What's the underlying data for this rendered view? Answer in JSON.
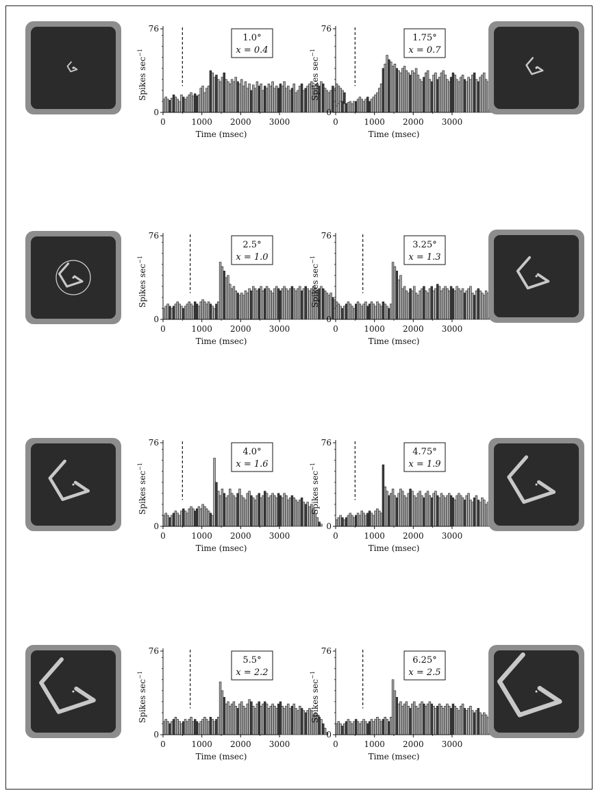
{
  "y_axis_label": "Spikes sec",
  "y_axis_label_exp": "−1",
  "x_axis_label": "Time (msec)",
  "x_ticks": [
    "0",
    "1000",
    "2000",
    "3000"
  ],
  "y_ticks": [
    "0",
    "76"
  ],
  "colors": {
    "bar_fill": "#a7a7a7",
    "bar_edge": "#1a1a1a",
    "stim_bg": "#2b2b2b",
    "stim_border": "#8d8d8d",
    "stim_shape": "#c8c8c8"
  },
  "chart_data": [
    {
      "type": "bar",
      "label_size": "1.0°",
      "label_x": "x = 0.4",
      "xlim": [
        0,
        3000
      ],
      "ylim": [
        0,
        76
      ],
      "bin_width_ms": 50,
      "onset_ms": 500,
      "values": [
        12,
        14,
        12,
        11,
        13,
        16,
        14,
        12,
        10,
        16,
        14,
        12,
        14,
        16,
        18,
        15,
        17,
        15,
        16,
        22,
        24,
        18,
        22,
        24,
        38,
        36,
        32,
        34,
        30,
        28,
        32,
        36,
        30,
        28,
        26,
        30,
        28,
        32,
        28,
        26,
        30,
        24,
        28,
        22,
        26,
        20,
        25,
        22,
        28,
        24,
        26,
        20,
        24,
        22,
        26,
        24,
        28,
        22,
        24,
        22,
        26,
        24,
        28,
        22,
        24,
        20,
        22,
        26,
        18,
        20,
        24,
        26,
        20,
        22,
        24,
        26,
        28,
        24,
        22,
        26,
        24,
        28,
        26,
        22,
        20,
        18,
        20,
        24,
        22,
        26,
        24,
        22,
        20,
        18,
        8,
        6,
        2,
        0,
        0,
        0,
        0,
        0,
        0,
        0,
        0,
        0,
        0,
        0,
        0,
        0,
        0,
        0,
        0,
        0,
        0,
        0,
        0,
        0,
        0,
        0,
        0,
        0
      ]
    },
    {
      "type": "bar",
      "label_size": "1.75°",
      "label_x": "x = 0.7",
      "xlim": [
        0,
        3000
      ],
      "ylim": [
        0,
        76
      ],
      "bin_width_ms": 50,
      "onset_ms": 500,
      "values": [
        6,
        8,
        10,
        10,
        8,
        8,
        9,
        10,
        8,
        10,
        10,
        12,
        14,
        12,
        10,
        12,
        14,
        10,
        12,
        14,
        16,
        18,
        22,
        26,
        40,
        44,
        52,
        48,
        46,
        42,
        44,
        40,
        38,
        36,
        40,
        42,
        38,
        36,
        34,
        38,
        36,
        40,
        34,
        30,
        28,
        32,
        36,
        38,
        30,
        28,
        34,
        36,
        30,
        32,
        36,
        38,
        34,
        30,
        28,
        32,
        36,
        34,
        30,
        28,
        32,
        34,
        30,
        28,
        32,
        30,
        34,
        36,
        30,
        28,
        32,
        34,
        36,
        30,
        28,
        30,
        34,
        32,
        30,
        28,
        26,
        28,
        30,
        26,
        24,
        22,
        18,
        14,
        10,
        6,
        4,
        2,
        0,
        0,
        0,
        0,
        0,
        0,
        0,
        0,
        0,
        0,
        0,
        0,
        0,
        0,
        0,
        0,
        0,
        0,
        0,
        0,
        0,
        0,
        0,
        0
      ]
    },
    {
      "type": "bar",
      "label_size": "2.5°",
      "label_x": "x = 1.0",
      "xlim": [
        0,
        3000
      ],
      "ylim": [
        0,
        76
      ],
      "bin_width_ms": 50,
      "onset_ms": 700,
      "values": [
        10,
        12,
        14,
        12,
        10,
        12,
        14,
        16,
        14,
        12,
        10,
        12,
        14,
        16,
        14,
        12,
        16,
        14,
        12,
        16,
        18,
        16,
        14,
        16,
        14,
        12,
        10,
        14,
        16,
        52,
        48,
        44,
        38,
        40,
        32,
        28,
        30,
        26,
        24,
        22,
        24,
        22,
        26,
        24,
        28,
        26,
        30,
        28,
        26,
        28,
        30,
        26,
        28,
        30,
        28,
        26,
        24,
        28,
        30,
        28,
        26,
        28,
        30,
        28,
        26,
        28,
        30,
        28,
        26,
        28,
        30,
        26,
        28,
        30,
        28,
        26,
        28,
        30,
        28,
        26,
        28,
        30,
        28,
        26,
        24,
        22,
        24,
        20,
        18,
        16,
        14,
        10,
        6,
        2,
        0,
        0,
        0,
        0,
        0,
        0,
        0,
        0,
        0,
        0,
        0,
        0,
        0,
        0,
        0,
        0,
        0,
        0,
        0,
        0,
        0,
        0,
        0,
        0,
        0,
        0
      ]
    },
    {
      "type": "bar",
      "label_size": "3.25°",
      "label_x": "x = 1.3",
      "xlim": [
        0,
        3000
      ],
      "ylim": [
        0,
        76
      ],
      "bin_width_ms": 50,
      "onset_ms": 700,
      "values": [
        12,
        14,
        12,
        10,
        12,
        14,
        16,
        14,
        12,
        10,
        14,
        16,
        14,
        12,
        14,
        16,
        12,
        14,
        16,
        14,
        12,
        16,
        14,
        12,
        16,
        14,
        12,
        10,
        14,
        52,
        48,
        44,
        36,
        40,
        28,
        30,
        26,
        24,
        28,
        26,
        30,
        24,
        22,
        26,
        28,
        30,
        26,
        24,
        28,
        30,
        26,
        28,
        32,
        30,
        26,
        28,
        30,
        28,
        26,
        30,
        28,
        26,
        30,
        28,
        26,
        28,
        24,
        26,
        28,
        30,
        24,
        22,
        26,
        28,
        26,
        24,
        22,
        26,
        24,
        20,
        22,
        24,
        22,
        20,
        18,
        20,
        18,
        16,
        14,
        12,
        8,
        4,
        2,
        0,
        0,
        0,
        0,
        0,
        0,
        0,
        0,
        0,
        0,
        0,
        0,
        0,
        0,
        0,
        0,
        0,
        0,
        0,
        0,
        0,
        0,
        0,
        0,
        0,
        0,
        0
      ]
    },
    {
      "type": "bar",
      "label_size": "4.0°",
      "label_x": "x = 1.6",
      "xlim": [
        0,
        3000
      ],
      "ylim": [
        0,
        76
      ],
      "bin_width_ms": 50,
      "onset_ms": 500,
      "values": [
        10,
        12,
        10,
        8,
        10,
        12,
        14,
        12,
        10,
        14,
        16,
        14,
        12,
        16,
        18,
        16,
        14,
        16,
        18,
        16,
        20,
        18,
        16,
        14,
        12,
        10,
        62,
        40,
        32,
        28,
        34,
        30,
        26,
        28,
        34,
        30,
        28,
        26,
        30,
        34,
        28,
        26,
        24,
        30,
        32,
        28,
        26,
        24,
        28,
        30,
        26,
        28,
        32,
        30,
        26,
        28,
        30,
        28,
        26,
        30,
        28,
        26,
        30,
        28,
        24,
        26,
        28,
        26,
        24,
        22,
        24,
        26,
        22,
        20,
        22,
        18,
        20,
        16,
        12,
        8,
        4,
        2,
        0,
        0,
        0,
        0,
        0,
        0,
        0,
        0,
        0,
        0,
        0,
        0,
        0,
        0,
        0,
        0,
        0,
        0,
        0,
        0,
        0,
        0,
        0,
        0,
        0,
        0,
        0,
        0,
        0,
        0,
        0,
        0,
        0,
        0,
        0,
        0,
        0,
        0
      ]
    },
    {
      "type": "bar",
      "label_size": "4.75°",
      "label_x": "x = 1.9",
      "xlim": [
        0,
        3000
      ],
      "ylim": [
        0,
        76
      ],
      "bin_width_ms": 50,
      "onset_ms": 500,
      "values": [
        6,
        8,
        10,
        8,
        6,
        8,
        10,
        12,
        10,
        8,
        10,
        12,
        10,
        14,
        12,
        10,
        12,
        14,
        12,
        10,
        14,
        16,
        14,
        12,
        56,
        36,
        32,
        28,
        30,
        34,
        28,
        26,
        30,
        34,
        32,
        28,
        26,
        30,
        34,
        32,
        28,
        26,
        30,
        32,
        28,
        26,
        30,
        32,
        28,
        26,
        30,
        32,
        28,
        26,
        30,
        28,
        26,
        28,
        30,
        28,
        26,
        24,
        28,
        30,
        28,
        26,
        24,
        28,
        30,
        24,
        22,
        26,
        28,
        24,
        22,
        26,
        24,
        20,
        22,
        24,
        20,
        18,
        16,
        14,
        10,
        6,
        4,
        2,
        0,
        0,
        0,
        0,
        0,
        0,
        0,
        0,
        0,
        0,
        0,
        0,
        0,
        0,
        0,
        0,
        0,
        0,
        0,
        0,
        0,
        0,
        0,
        0,
        0,
        0,
        0,
        0,
        0,
        0,
        0,
        0
      ]
    },
    {
      "type": "bar",
      "label_size": "5.5°",
      "label_x": "x = 2.2",
      "xlim": [
        0,
        3000
      ],
      "ylim": [
        0,
        76
      ],
      "bin_width_ms": 50,
      "onset_ms": 700,
      "values": [
        12,
        14,
        12,
        10,
        12,
        14,
        16,
        14,
        12,
        10,
        12,
        14,
        12,
        14,
        16,
        12,
        14,
        12,
        10,
        12,
        14,
        16,
        14,
        12,
        16,
        14,
        12,
        14,
        16,
        48,
        40,
        34,
        28,
        30,
        26,
        28,
        30,
        26,
        24,
        28,
        30,
        26,
        24,
        28,
        32,
        30,
        26,
        24,
        28,
        30,
        26,
        28,
        30,
        28,
        24,
        26,
        28,
        26,
        24,
        28,
        30,
        26,
        24,
        26,
        28,
        24,
        26,
        28,
        24,
        22,
        26,
        24,
        22,
        20,
        22,
        24,
        22,
        18,
        20,
        18,
        16,
        14,
        10,
        6,
        2,
        0,
        0,
        0,
        0,
        0,
        0,
        0,
        0,
        0,
        0,
        0,
        0,
        0,
        0,
        0,
        0,
        0,
        0,
        0,
        0,
        0,
        0,
        0,
        0,
        0,
        0,
        0,
        0,
        0,
        0,
        0,
        0,
        0,
        0,
        0
      ]
    },
    {
      "type": "bar",
      "label_size": "6.25°",
      "label_x": "x = 2.5",
      "xlim": [
        0,
        3000
      ],
      "ylim": [
        0,
        76
      ],
      "bin_width_ms": 50,
      "onset_ms": 700,
      "values": [
        10,
        12,
        10,
        8,
        10,
        12,
        14,
        12,
        10,
        12,
        14,
        12,
        10,
        12,
        14,
        12,
        10,
        12,
        14,
        12,
        14,
        16,
        14,
        12,
        14,
        16,
        14,
        12,
        16,
        50,
        40,
        34,
        28,
        30,
        26,
        28,
        30,
        26,
        24,
        28,
        30,
        26,
        24,
        28,
        30,
        28,
        26,
        28,
        30,
        28,
        26,
        24,
        26,
        28,
        26,
        24,
        26,
        28,
        26,
        24,
        28,
        26,
        24,
        22,
        26,
        28,
        24,
        22,
        24,
        26,
        22,
        20,
        22,
        24,
        20,
        18,
        20,
        18,
        16,
        14,
        12,
        10,
        6,
        2,
        0,
        0,
        0,
        0,
        0,
        0,
        0,
        0,
        0,
        0,
        0,
        0,
        0,
        0,
        0,
        0,
        0,
        0,
        0,
        0,
        0,
        0,
        0,
        0,
        0,
        0,
        0,
        0,
        0,
        0,
        0,
        0,
        0,
        0,
        0,
        0
      ]
    }
  ]
}
